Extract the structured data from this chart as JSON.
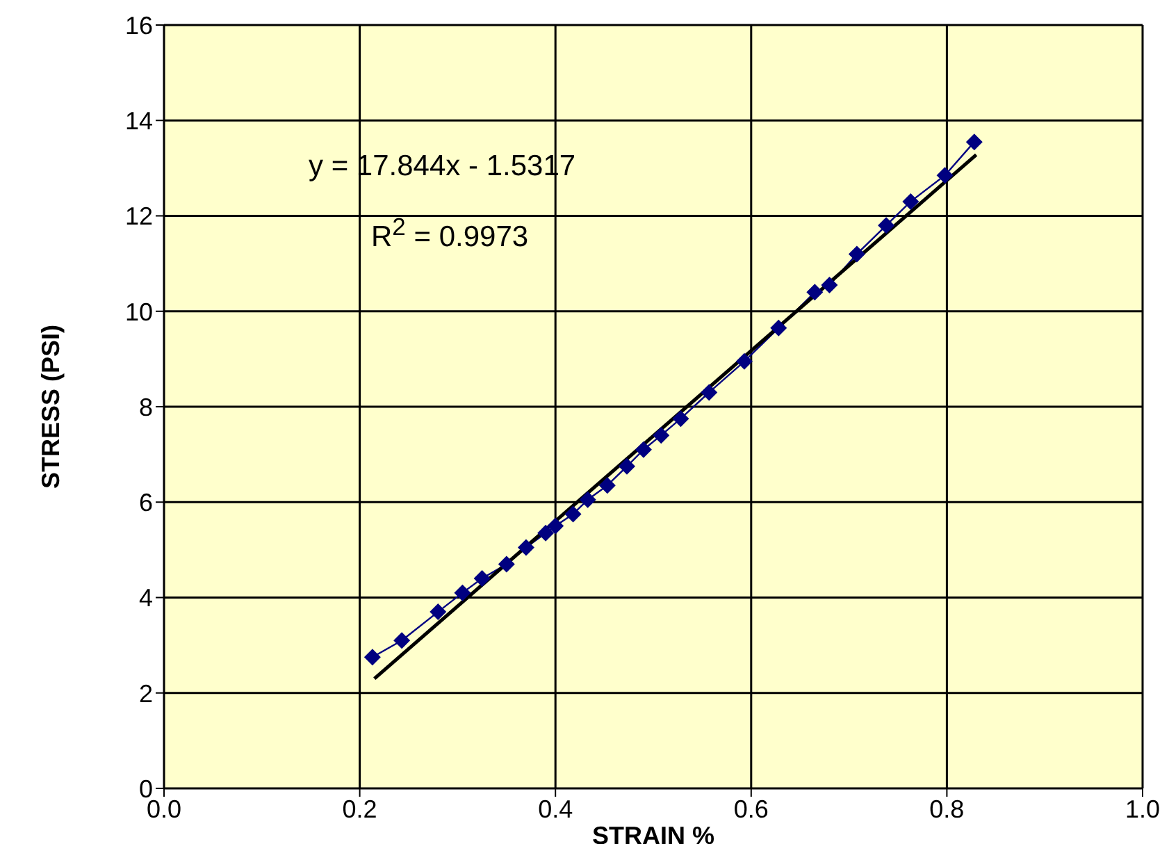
{
  "chart_data": {
    "type": "line",
    "xlabel": "STRAIN %",
    "ylabel": "STRESS (PSI)",
    "xlim": [
      0,
      1
    ],
    "xticks": [
      {
        "value": 0,
        "label": "0.0"
      },
      0.2,
      0.4,
      0.6,
      0.8,
      {
        "value": 1,
        "label": "1.0"
      }
    ],
    "ylim": [
      0,
      16
    ],
    "yticks": [
      0,
      2,
      4,
      6,
      8,
      10,
      12,
      14,
      16
    ],
    "grid": true,
    "marker": "diamond",
    "line_style": "solid",
    "series": [
      {
        "color": "#000080",
        "x": [
          0.213,
          0.243,
          0.28,
          0.305,
          0.325,
          0.35,
          0.37,
          0.39,
          0.4,
          0.418,
          0.433,
          0.453,
          0.473,
          0.49,
          0.508,
          0.528,
          0.557,
          0.593,
          0.628,
          0.665,
          0.68,
          0.708,
          0.738,
          0.763,
          0.798,
          0.828
        ],
        "values": [
          2.75,
          3.1,
          3.7,
          4.1,
          4.4,
          4.7,
          5.05,
          5.35,
          5.5,
          5.75,
          6.05,
          6.35,
          6.75,
          7.1,
          7.4,
          7.75,
          8.3,
          8.95,
          9.65,
          10.4,
          10.55,
          11.2,
          11.8,
          12.3,
          12.85,
          13.55
        ]
      },
      {
        "color": "#000000",
        "marker": "none",
        "x": [
          0.215,
          0.83
        ],
        "values": [
          2.3,
          13.28
        ]
      }
    ],
    "annotations": [
      "y = 17.844x - 1.5317",
      "R$^{2}$ = 0.9973"
    ]
  }
}
